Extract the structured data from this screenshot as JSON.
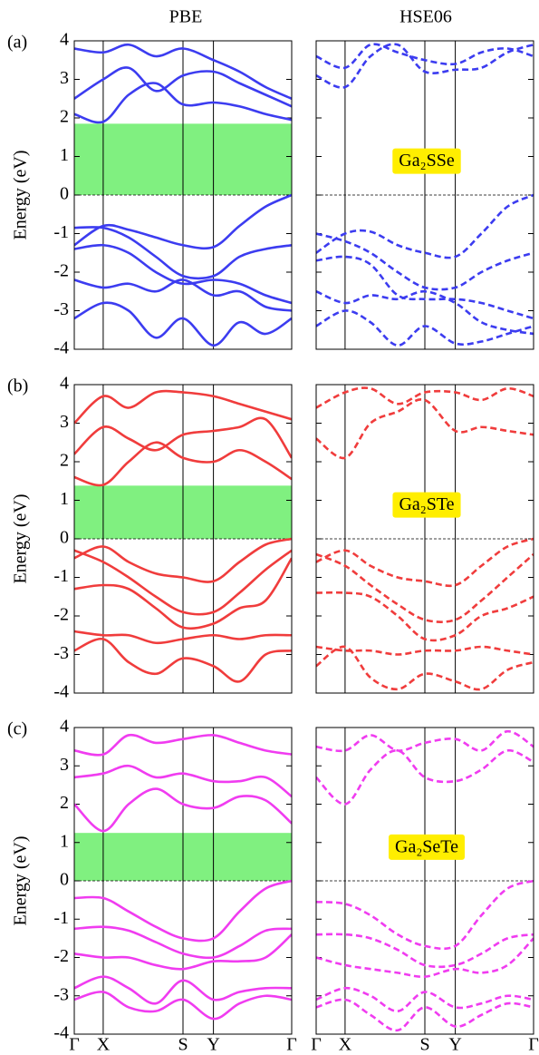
{
  "column_titles": [
    "PBE",
    "HSE06"
  ],
  "chart_data": [
    {
      "type": "line",
      "panel_label": "(a)",
      "ylabel": "Energy (eV)",
      "color": "#3c3cf0",
      "dash": false,
      "x": [
        0,
        0.133,
        0.25,
        0.375,
        0.5,
        0.64,
        0.76,
        0.88,
        1
      ],
      "xticks": [
        0.133,
        0.5,
        0.64
      ],
      "ylim": [
        -4,
        4
      ],
      "yticks": [
        -4,
        -3,
        -2,
        -1,
        0,
        1,
        2,
        3,
        4
      ],
      "band_gap": [
        0,
        1.85
      ],
      "gap_color": "#80f080",
      "fermi_level": 0,
      "series": [
        {
          "values": [
            2.1,
            1.9,
            2.6,
            2.9,
            2.35,
            2.4,
            2.3,
            2.1,
            1.95
          ]
        },
        {
          "values": [
            2.5,
            3.0,
            3.3,
            2.7,
            3.1,
            3.2,
            2.9,
            2.6,
            2.3
          ]
        },
        {
          "values": [
            3.8,
            3.7,
            3.9,
            3.6,
            3.8,
            3.5,
            3.2,
            2.8,
            2.5
          ]
        },
        {
          "values": [
            -1.3,
            -0.8,
            -0.9,
            -1.1,
            -1.3,
            -1.35,
            -0.8,
            -0.3,
            0
          ]
        },
        {
          "values": [
            -0.85,
            -0.85,
            -1.1,
            -1.6,
            -2.1,
            -2.1,
            -1.6,
            -1.4,
            -1.3
          ]
        },
        {
          "values": [
            -1.4,
            -1.3,
            -1.5,
            -2.0,
            -2.3,
            -2.2,
            -2.3,
            -2.6,
            -2.8
          ]
        },
        {
          "values": [
            -2.2,
            -2.4,
            -2.3,
            -2.5,
            -2.2,
            -2.6,
            -2.5,
            -2.9,
            -3.0
          ]
        },
        {
          "values": [
            -3.2,
            -2.8,
            -3.0,
            -3.7,
            -3.2,
            -3.9,
            -3.3,
            -3.6,
            -3.2
          ]
        }
      ]
    },
    {
      "type": "line",
      "annotation": "Ga₂SSe",
      "color": "#3c3cf0",
      "dash": true,
      "ytick_labels": false,
      "x": [
        0,
        0.133,
        0.25,
        0.375,
        0.5,
        0.64,
        0.76,
        0.88,
        1
      ],
      "xticks": [
        0.133,
        0.5,
        0.64
      ],
      "ylim": [
        -4,
        4
      ],
      "yticks": [
        -4,
        -3,
        -2,
        -1,
        0,
        1,
        2,
        3,
        4
      ],
      "fermi_level": 0,
      "series": [
        {
          "values": [
            3.1,
            2.8,
            3.6,
            3.9,
            3.2,
            3.25,
            3.3,
            3.7,
            3.9
          ]
        },
        {
          "values": [
            3.6,
            3.3,
            3.9,
            3.7,
            3.5,
            3.4,
            3.7,
            3.8,
            3.6
          ]
        },
        {
          "values": [
            -1.5,
            -1.0,
            -0.95,
            -1.3,
            -1.5,
            -1.6,
            -1.0,
            -0.3,
            0
          ]
        },
        {
          "values": [
            -1.0,
            -1.2,
            -1.5,
            -2.0,
            -2.4,
            -2.4,
            -2.0,
            -1.7,
            -1.5
          ]
        },
        {
          "values": [
            -1.7,
            -1.6,
            -1.8,
            -2.6,
            -2.7,
            -2.7,
            -2.8,
            -3.0,
            -3.2
          ]
        },
        {
          "values": [
            -2.5,
            -2.8,
            -2.6,
            -2.7,
            -2.5,
            -2.8,
            -3.3,
            -3.5,
            -3.6
          ]
        },
        {
          "values": [
            -3.4,
            -3.0,
            -3.3,
            -3.9,
            -3.4,
            -3.85,
            -3.8,
            -3.6,
            -3.4
          ]
        }
      ]
    },
    {
      "type": "line",
      "panel_label": "(b)",
      "ylabel": "Energy (eV)",
      "color": "#f03c3c",
      "dash": false,
      "x": [
        0,
        0.133,
        0.25,
        0.375,
        0.5,
        0.64,
        0.76,
        0.88,
        1
      ],
      "xticks": [
        0.133,
        0.5,
        0.64
      ],
      "ylim": [
        -4,
        4
      ],
      "yticks": [
        -4,
        -3,
        -2,
        -1,
        0,
        1,
        2,
        3,
        4
      ],
      "band_gap": [
        0,
        1.38
      ],
      "gap_color": "#80f080",
      "fermi_level": 0,
      "series": [
        {
          "values": [
            1.6,
            1.4,
            2.0,
            2.5,
            2.1,
            2.0,
            2.3,
            2.0,
            1.55
          ]
        },
        {
          "values": [
            2.2,
            2.9,
            2.6,
            2.3,
            2.7,
            2.8,
            2.9,
            3.1,
            2.1
          ]
        },
        {
          "values": [
            3.0,
            3.7,
            3.4,
            3.8,
            3.8,
            3.7,
            3.5,
            3.3,
            3.1
          ]
        },
        {
          "values": [
            -0.5,
            -0.2,
            -0.6,
            -0.9,
            -1.0,
            -1.1,
            -0.6,
            -0.15,
            0
          ]
        },
        {
          "values": [
            -0.3,
            -0.6,
            -1.0,
            -1.5,
            -1.9,
            -1.9,
            -1.4,
            -0.8,
            -0.3
          ]
        },
        {
          "values": [
            -1.3,
            -1.2,
            -1.3,
            -1.8,
            -2.3,
            -2.2,
            -1.8,
            -1.6,
            -0.5
          ]
        },
        {
          "values": [
            -2.4,
            -2.5,
            -2.5,
            -2.7,
            -2.6,
            -2.5,
            -2.6,
            -2.5,
            -2.5
          ]
        },
        {
          "values": [
            -2.9,
            -2.6,
            -3.2,
            -3.5,
            -3.1,
            -3.3,
            -3.7,
            -3.0,
            -2.9
          ]
        }
      ]
    },
    {
      "type": "line",
      "annotation": "Ga₂STe",
      "color": "#f03c3c",
      "dash": true,
      "ytick_labels": false,
      "x": [
        0,
        0.133,
        0.25,
        0.375,
        0.5,
        0.64,
        0.76,
        0.88,
        1
      ],
      "xticks": [
        0.133,
        0.5,
        0.64
      ],
      "ylim": [
        -4,
        4
      ],
      "yticks": [
        -4,
        -3,
        -2,
        -1,
        0,
        1,
        2,
        3,
        4
      ],
      "fermi_level": 0,
      "series": [
        {
          "values": [
            2.6,
            2.1,
            3.0,
            3.3,
            3.6,
            2.8,
            2.9,
            2.8,
            2.7
          ]
        },
        {
          "values": [
            3.4,
            3.8,
            3.9,
            3.5,
            3.8,
            3.8,
            3.6,
            3.9,
            3.7
          ]
        },
        {
          "values": [
            -0.6,
            -0.3,
            -0.7,
            -1.0,
            -1.1,
            -1.2,
            -0.7,
            -0.2,
            0
          ]
        },
        {
          "values": [
            -0.4,
            -0.7,
            -1.2,
            -1.7,
            -2.1,
            -2.1,
            -1.6,
            -1.0,
            -0.4
          ]
        },
        {
          "values": [
            -1.4,
            -1.4,
            -1.5,
            -2.0,
            -2.6,
            -2.5,
            -2.0,
            -1.8,
            -1.5
          ]
        },
        {
          "values": [
            -2.8,
            -2.9,
            -2.9,
            -3.0,
            -2.9,
            -2.9,
            -2.8,
            -2.9,
            -3.0
          ]
        },
        {
          "values": [
            -3.3,
            -2.8,
            -3.6,
            -3.9,
            -3.5,
            -3.7,
            -3.9,
            -3.4,
            -3.2
          ]
        }
      ]
    },
    {
      "type": "line",
      "panel_label": "(c)",
      "ylabel": "Energy (eV)",
      "color": "#f03cf0",
      "dash": false,
      "x": [
        0,
        0.133,
        0.25,
        0.375,
        0.5,
        0.64,
        0.76,
        0.88,
        1
      ],
      "xticks": [
        {
          "value": 0,
          "label": "Γ"
        },
        {
          "value": 0.133,
          "label": "X"
        },
        {
          "value": 0.5,
          "label": "S"
        },
        {
          "value": 0.64,
          "label": "Y"
        },
        {
          "value": 1,
          "label": "Γ"
        }
      ],
      "ylim": [
        -4,
        4
      ],
      "yticks": [
        -4,
        -3,
        -2,
        -1,
        0,
        1,
        2,
        3,
        4
      ],
      "band_gap": [
        0,
        1.25
      ],
      "gap_color": "#80f080",
      "fermi_level": 0,
      "series": [
        {
          "values": [
            2.0,
            1.3,
            2.0,
            2.4,
            2.0,
            1.9,
            2.2,
            2.1,
            1.5
          ]
        },
        {
          "values": [
            2.7,
            2.8,
            3.0,
            2.7,
            2.8,
            2.6,
            2.6,
            2.7,
            2.2
          ]
        },
        {
          "values": [
            3.4,
            3.3,
            3.8,
            3.6,
            3.7,
            3.8,
            3.6,
            3.4,
            3.3
          ]
        },
        {
          "values": [
            -0.45,
            -0.45,
            -0.8,
            -1.2,
            -1.5,
            -1.5,
            -0.8,
            -0.2,
            0
          ]
        },
        {
          "values": [
            -1.25,
            -1.2,
            -1.3,
            -1.6,
            -1.9,
            -2.0,
            -1.7,
            -1.3,
            -1.25
          ]
        },
        {
          "values": [
            -1.9,
            -2.0,
            -2.0,
            -2.2,
            -2.3,
            -2.1,
            -2.1,
            -2.0,
            -1.4
          ]
        },
        {
          "values": [
            -2.8,
            -2.5,
            -2.8,
            -3.2,
            -2.6,
            -3.1,
            -2.9,
            -2.8,
            -2.8
          ]
        },
        {
          "values": [
            -3.1,
            -2.9,
            -3.3,
            -3.4,
            -3.1,
            -3.6,
            -3.2,
            -3.0,
            -3.1
          ]
        }
      ]
    },
    {
      "type": "line",
      "annotation": "Ga₂SeTe",
      "color": "#f03cf0",
      "dash": true,
      "ytick_labels": false,
      "x": [
        0,
        0.133,
        0.25,
        0.375,
        0.5,
        0.64,
        0.76,
        0.88,
        1
      ],
      "xticks": [
        {
          "value": 0,
          "label": "Γ"
        },
        {
          "value": 0.133,
          "label": "X"
        },
        {
          "value": 0.5,
          "label": "S"
        },
        {
          "value": 0.64,
          "label": "Y"
        },
        {
          "value": 1,
          "label": "Γ"
        }
      ],
      "ylim": [
        -4,
        4
      ],
      "yticks": [
        -4,
        -3,
        -2,
        -1,
        0,
        1,
        2,
        3,
        4
      ],
      "fermi_level": 0,
      "series": [
        {
          "values": [
            2.7,
            2.0,
            2.9,
            3.4,
            2.7,
            2.6,
            2.9,
            3.4,
            3.1
          ]
        },
        {
          "values": [
            3.5,
            3.4,
            3.8,
            3.4,
            3.6,
            3.7,
            3.4,
            3.9,
            3.5
          ]
        },
        {
          "values": [
            -0.55,
            -0.6,
            -0.9,
            -1.4,
            -1.7,
            -1.7,
            -0.9,
            -0.2,
            0
          ]
        },
        {
          "values": [
            -1.4,
            -1.4,
            -1.5,
            -1.8,
            -2.2,
            -2.2,
            -1.9,
            -1.5,
            -1.4
          ]
        },
        {
          "values": [
            -2.0,
            -2.2,
            -2.3,
            -2.4,
            -2.5,
            -2.3,
            -2.4,
            -2.2,
            -1.5
          ]
        },
        {
          "values": [
            -3.1,
            -2.8,
            -3.0,
            -3.4,
            -2.9,
            -3.3,
            -3.2,
            -3.0,
            -3.1
          ]
        },
        {
          "values": [
            -3.3,
            -3.1,
            -3.5,
            -3.9,
            -3.3,
            -3.8,
            -3.5,
            -3.2,
            -3.3
          ]
        }
      ]
    }
  ]
}
